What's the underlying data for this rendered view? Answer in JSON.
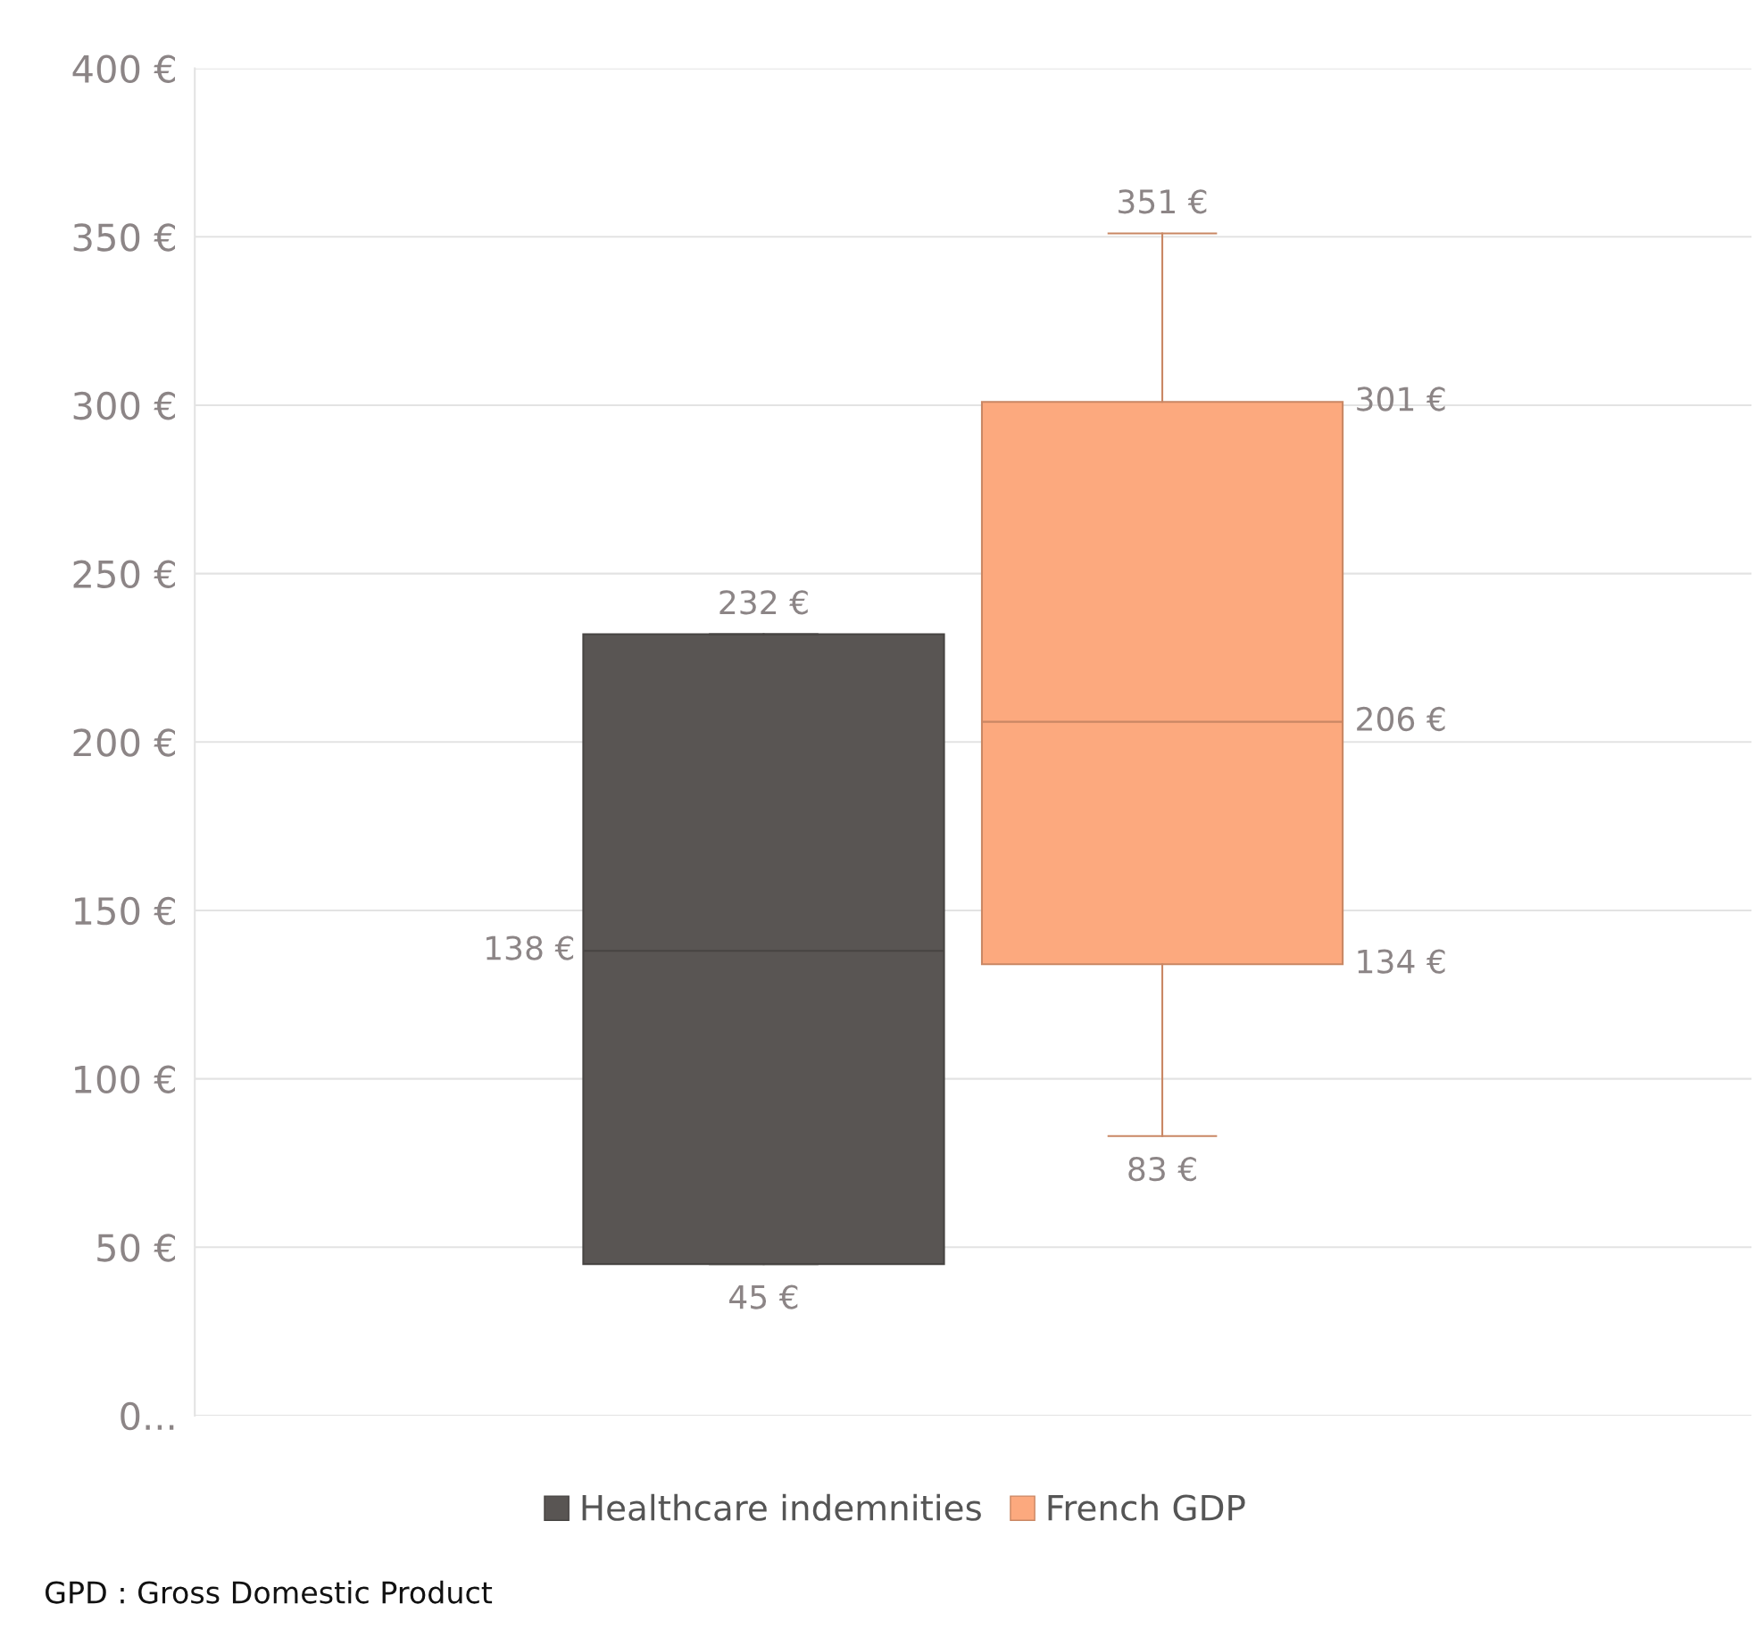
{
  "chart_data": {
    "type": "box",
    "categories": [
      null
    ],
    "series": [
      {
        "name": "Healthcare indemnities",
        "color": "#595553",
        "boxes": [
          {
            "low": 45,
            "q1": 45,
            "median": 138,
            "q3": 232,
            "high": 232
          }
        ],
        "value_labels": [
          [
            "45 €",
            "138 €",
            "232 €"
          ]
        ]
      },
      {
        "name": "French GDP",
        "color": "#fca97e",
        "boxes": [
          {
            "low": 83,
            "q1": 134,
            "median": 206,
            "q3": 301,
            "high": 351
          }
        ],
        "value_labels": [
          [
            "83 €",
            "134 €",
            "206 €",
            "301 €",
            "351 €"
          ]
        ]
      }
    ],
    "ylim": [
      0,
      400
    ],
    "yticks": [
      {
        "value": 0,
        "label": "0..."
      },
      {
        "value": 50,
        "label": "50 €"
      },
      {
        "value": 100,
        "label": "100 €"
      },
      {
        "value": 150,
        "label": "150 €"
      },
      {
        "value": 200,
        "label": "200 €"
      },
      {
        "value": 250,
        "label": "250 €"
      },
      {
        "value": 300,
        "label": "300 €"
      },
      {
        "value": 350,
        "label": "350 €"
      },
      {
        "value": 400,
        "label": "400 €"
      }
    ],
    "grid": "y",
    "legend": "bottom",
    "annotations": [
      "GPD : Gross Domestic Product"
    ]
  }
}
